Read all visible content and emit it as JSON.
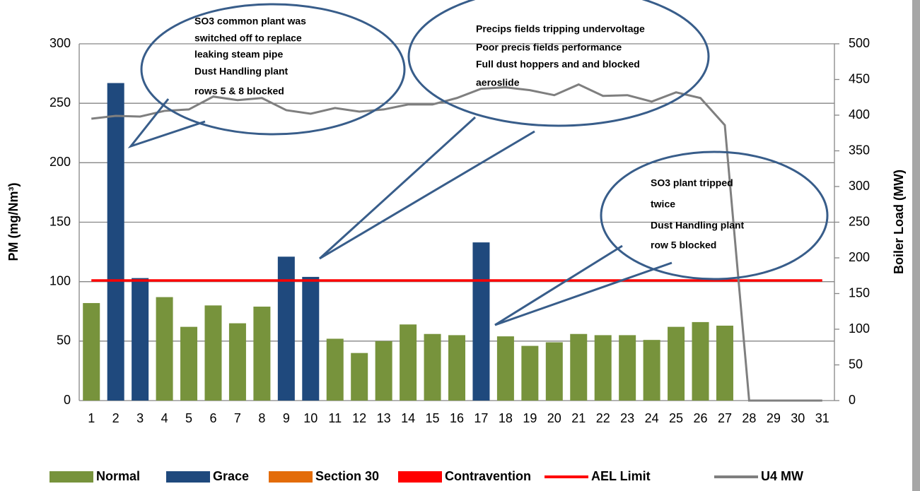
{
  "chart_data": {
    "type": "bar",
    "y_label": "PM (mg/Nm³)",
    "y2_label": "Boiler Load (MW)",
    "categories": [
      "1",
      "2",
      "3",
      "4",
      "5",
      "6",
      "7",
      "8",
      "9",
      "10",
      "11",
      "12",
      "13",
      "14",
      "15",
      "16",
      "17",
      "18",
      "19",
      "20",
      "21",
      "22",
      "23",
      "24",
      "25",
      "26",
      "27",
      "28",
      "29",
      "30",
      "31"
    ],
    "series": [
      {
        "name": "Normal",
        "type": "bar",
        "color": "#77933c",
        "values": [
          82,
          null,
          null,
          87,
          62,
          80,
          65,
          79,
          null,
          null,
          52,
          40,
          50,
          64,
          56,
          55,
          null,
          54,
          46,
          49,
          56,
          55,
          55,
          51,
          62,
          66,
          63,
          null,
          null,
          null,
          null
        ]
      },
      {
        "name": "Grace",
        "type": "bar",
        "color": "#1f497d",
        "values": [
          null,
          267,
          103,
          null,
          null,
          null,
          null,
          null,
          121,
          104,
          null,
          null,
          null,
          null,
          null,
          null,
          133,
          null,
          null,
          null,
          null,
          null,
          null,
          null,
          null,
          null,
          null,
          null,
          null,
          null,
          null
        ]
      },
      {
        "name": "Section 30",
        "type": "bar",
        "color": "#e36c09",
        "values": [
          null,
          null,
          null,
          null,
          null,
          null,
          null,
          null,
          null,
          null,
          null,
          null,
          null,
          null,
          null,
          null,
          null,
          null,
          null,
          null,
          null,
          null,
          null,
          null,
          null,
          null,
          null,
          null,
          null,
          null,
          null
        ]
      },
      {
        "name": "Contravention",
        "type": "bar",
        "color": "#ff0000",
        "values": [
          null,
          null,
          null,
          null,
          null,
          null,
          null,
          null,
          null,
          null,
          null,
          null,
          null,
          null,
          null,
          null,
          null,
          null,
          null,
          null,
          null,
          null,
          null,
          null,
          null,
          null,
          null,
          null,
          null,
          null,
          null
        ]
      },
      {
        "name": "AEL Limit",
        "type": "line",
        "color": "#ff0000",
        "values": [
          101,
          101,
          101,
          101,
          101,
          101,
          101,
          101,
          101,
          101,
          101,
          101,
          101,
          101,
          101,
          101,
          101,
          101,
          101,
          101,
          101,
          101,
          101,
          101,
          101,
          101,
          101,
          101,
          101,
          101,
          101
        ]
      },
      {
        "name": "U4 MW",
        "type": "line",
        "axis": "y2",
        "color": "#7f7f7f",
        "values": [
          395,
          399,
          398,
          406,
          408,
          426,
          421,
          424,
          407,
          402,
          410,
          405,
          408,
          415,
          415,
          424,
          437,
          439,
          435,
          428,
          443,
          427,
          428,
          419,
          432,
          424,
          386,
          0,
          0,
          0,
          0
        ]
      }
    ],
    "ylim": [
      0,
      300
    ],
    "yticks": [
      0,
      50,
      100,
      150,
      200,
      250,
      300
    ],
    "y2lim": [
      0,
      500
    ],
    "y2ticks": [
      0,
      50,
      100,
      150,
      200,
      250,
      300,
      350,
      400,
      450,
      500
    ],
    "grid": true,
    "annotations": [
      {
        "lines": [
          "SO3 common plant was",
          "switched off  to replace",
          "leaking steam pipe",
          "Dust Handling plant",
          "rows 5 & 8 blocked"
        ]
      },
      {
        "lines": [
          "Precips fields tripping undervoltage",
          "Poor precis fields performance",
          " Full dust hoppers and and blocked",
          "aeroslide"
        ]
      },
      {
        "lines": [
          "SO3 plant tripped",
          "twice",
          "Dust Handling plant",
          "row 5 blocked"
        ]
      }
    ]
  }
}
